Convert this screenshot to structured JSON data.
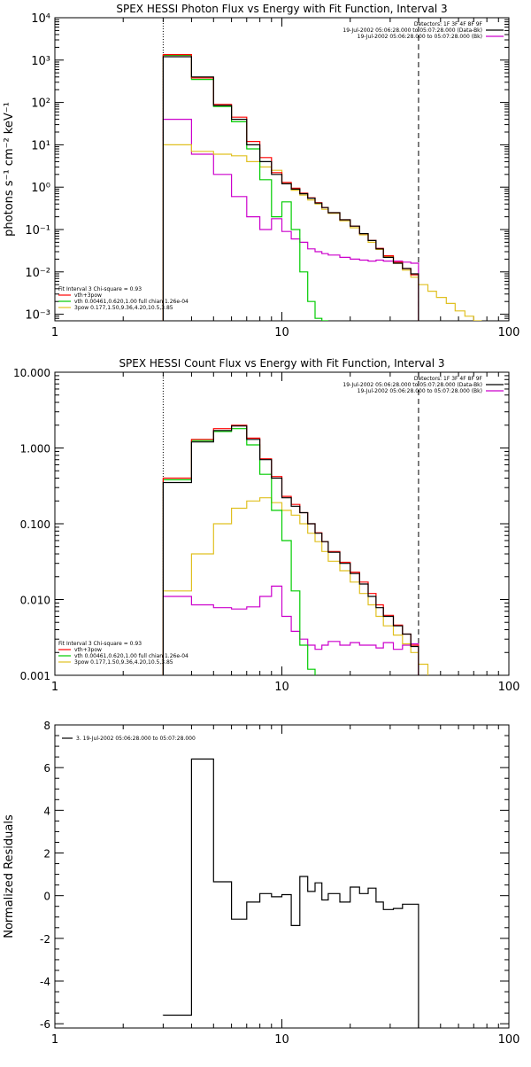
{
  "colors": {
    "data": "#000000",
    "total": "#ff0000",
    "thermal": "#00cc00",
    "powerlaw": "#e0c020",
    "background": "#cc00cc"
  },
  "chart_data": [
    {
      "type": "line",
      "title": "SPEX HESSI Photon Flux vs Energy with Fit Function, Interval 3",
      "xlabel": "",
      "ylabel": "photons s⁻¹ cm⁻² keV⁻¹",
      "xscale": "log",
      "yscale": "log",
      "xlim": [
        1,
        100
      ],
      "ylim": [
        0.0007,
        10000
      ],
      "xticks": [
        1,
        10,
        100
      ],
      "xtick_labels": [
        "1",
        "10",
        "100"
      ],
      "yticks": [
        0.001,
        0.01,
        0.1,
        1,
        10,
        100,
        1000,
        10000
      ],
      "ytick_labels": [
        "10⁻³",
        "10⁻²",
        "10⁻¹",
        "10⁰",
        "10¹",
        "10²",
        "10³",
        "10⁴"
      ],
      "vlines": [
        {
          "x": 3,
          "style": "dotted"
        },
        {
          "x": 40,
          "style": "dashed"
        }
      ],
      "legend_top": [
        "Detectors: 1F 3F 4F 8F 9F",
        "19-Jul-2002 05:06:28.000 to 05:07:28.000 (Data-Bk)",
        "19-Jul-2002 05:06:28.000 to 05:07:28.000 (Bk)"
      ],
      "legend_top_colors": [
        "none",
        "data",
        "background"
      ],
      "legend_bottom": [
        "Fit Interval  3    Chi-square = 0.93",
        "vth+3pow",
        "vth 0.00461,0.620,1.00   full chian 1.26e-04",
        "3pow 0.177,1.50,9.36,4.20,10.5,3.85"
      ],
      "legend_bottom_colors": [
        "none",
        "total",
        "thermal",
        "powerlaw"
      ],
      "edges": [
        3,
        4,
        5,
        6,
        7,
        8,
        9,
        10,
        11,
        12,
        13,
        14,
        15,
        16,
        18,
        20,
        22,
        24,
        26,
        28,
        31,
        34,
        37,
        40,
        44,
        48,
        53,
        58,
        64,
        70,
        76
      ],
      "series": [
        {
          "name": "data",
          "color": "data",
          "values": [
            1200,
            400,
            85,
            40,
            10,
            4,
            2.0,
            1.2,
            0.9,
            0.7,
            0.55,
            0.42,
            0.33,
            0.25,
            0.17,
            0.12,
            0.08,
            0.055,
            0.035,
            0.022,
            0.016,
            0.012,
            0.009,
            null,
            null,
            null,
            null,
            null,
            null,
            null
          ]
        },
        {
          "name": "total",
          "color": "total",
          "values": [
            1350,
            380,
            90,
            45,
            12,
            5,
            2.2,
            1.3,
            0.95,
            0.72,
            0.56,
            0.43,
            0.33,
            0.25,
            0.17,
            0.12,
            0.08,
            0.055,
            0.036,
            0.024,
            0.017,
            0.012,
            0.0085,
            null,
            null,
            null,
            null,
            null,
            null,
            null
          ]
        },
        {
          "name": "thermal",
          "color": "thermal",
          "values": [
            1300,
            350,
            80,
            35,
            8,
            1.5,
            0.2,
            0.45,
            0.1,
            0.01,
            0.002,
            0.0008,
            0.0003,
            null,
            null,
            null,
            null,
            null,
            null,
            null,
            null,
            null,
            null,
            null,
            null,
            null,
            null,
            null,
            null,
            null
          ]
        },
        {
          "name": "powerlaw",
          "color": "powerlaw",
          "values": [
            10,
            7,
            6,
            5.5,
            4,
            3,
            2.5,
            1.2,
            0.85,
            0.65,
            0.5,
            0.4,
            0.3,
            0.24,
            0.16,
            0.11,
            0.075,
            0.05,
            0.034,
            0.023,
            0.016,
            0.011,
            0.0075,
            0.005,
            0.0035,
            0.0025,
            0.0018,
            0.0012,
            0.0009,
            0.0007
          ]
        },
        {
          "name": "background",
          "color": "background",
          "values": [
            40,
            6,
            2.0,
            0.6,
            0.2,
            0.1,
            0.18,
            0.09,
            0.06,
            0.05,
            0.035,
            0.03,
            0.027,
            0.025,
            0.022,
            0.02,
            0.019,
            0.018,
            0.019,
            0.018,
            0.018,
            0.017,
            0.016,
            null,
            null,
            null,
            null,
            null,
            null,
            null
          ]
        }
      ]
    },
    {
      "type": "line",
      "title": "SPEX HESSI Count Flux vs Energy with Fit Function, Interval 3",
      "xlabel": "",
      "ylabel": "",
      "xscale": "log",
      "yscale": "log",
      "xlim": [
        1,
        100
      ],
      "ylim": [
        0.001,
        10
      ],
      "xticks": [
        1,
        10,
        100
      ],
      "xtick_labels": [
        "1",
        "10",
        "100"
      ],
      "yticks": [
        0.001,
        0.01,
        0.1,
        1,
        10
      ],
      "ytick_labels": [
        "0.001",
        "0.010",
        "0.100",
        "1.000",
        "10.000"
      ],
      "vlines": [
        {
          "x": 3,
          "style": "dotted"
        },
        {
          "x": 40,
          "style": "dashed"
        }
      ],
      "legend_top": [
        "Detectors: 1F 3F 4F 8F 9F",
        "19-Jul-2002 05:06:28.000 to 05:07:28.000 (Data-Bk)",
        "19-Jul-2002 05:06:28.000 to 05:07:28.000 (Bk)"
      ],
      "legend_top_colors": [
        "none",
        "data",
        "background"
      ],
      "legend_bottom": [
        "Fit Interval  3    Chi-square = 0.93",
        "vth+3pow",
        "vth 0.00461,0.620,1.00   full chian 1.26e-04",
        "3pow 0.177,1.50,9.36,4.20,10.5,3.85"
      ],
      "legend_bottom_colors": [
        "none",
        "total",
        "thermal",
        "powerlaw"
      ],
      "edges": [
        3,
        4,
        5,
        6,
        7,
        8,
        9,
        10,
        11,
        12,
        13,
        14,
        15,
        16,
        18,
        20,
        22,
        24,
        26,
        28,
        31,
        34,
        37,
        40,
        44
      ],
      "series": [
        {
          "name": "data",
          "color": "data",
          "values": [
            0.35,
            1.2,
            1.7,
            1.95,
            1.3,
            0.7,
            0.4,
            0.22,
            0.17,
            0.14,
            0.1,
            0.075,
            0.058,
            0.042,
            0.03,
            0.022,
            0.016,
            0.011,
            0.0078,
            0.006,
            0.0045,
            0.0035,
            0.0024,
            null
          ]
        },
        {
          "name": "total",
          "color": "total",
          "values": [
            0.4,
            1.3,
            1.8,
            2.0,
            1.35,
            0.72,
            0.42,
            0.23,
            0.18,
            0.14,
            0.1,
            0.076,
            0.058,
            0.043,
            0.031,
            0.023,
            0.017,
            0.012,
            0.0085,
            0.0062,
            0.0046,
            0.0035,
            0.0025,
            null
          ]
        },
        {
          "name": "thermal",
          "color": "thermal",
          "values": [
            0.38,
            1.25,
            1.65,
            1.8,
            1.1,
            0.45,
            0.15,
            0.06,
            0.013,
            0.0025,
            0.0012,
            null,
            null,
            null,
            null,
            null,
            null,
            null,
            null,
            null,
            null,
            null,
            null,
            null
          ]
        },
        {
          "name": "powerlaw",
          "color": "powerlaw",
          "values": [
            0.013,
            0.04,
            0.1,
            0.16,
            0.2,
            0.22,
            0.19,
            0.15,
            0.13,
            0.1,
            0.075,
            0.058,
            0.043,
            0.032,
            0.024,
            0.017,
            0.012,
            0.0085,
            0.006,
            0.0045,
            0.0034,
            0.0026,
            0.002,
            0.0014
          ]
        },
        {
          "name": "background",
          "color": "background",
          "values": [
            0.011,
            0.0085,
            0.0078,
            0.0075,
            0.008,
            0.011,
            0.015,
            0.006,
            0.0038,
            0.003,
            0.0025,
            0.0022,
            0.0025,
            0.0028,
            0.0025,
            0.0027,
            0.0025,
            0.0025,
            0.0023,
            0.0027,
            0.0022,
            0.0025,
            0.0026,
            null
          ]
        }
      ]
    },
    {
      "type": "line",
      "title": "",
      "xlabel": "",
      "ylabel": "Normalized Residuals",
      "xscale": "log",
      "yscale": "linear",
      "xlim": [
        1,
        100
      ],
      "ylim": [
        -6.2,
        8
      ],
      "xticks": [
        1,
        10,
        100
      ],
      "xtick_labels": [
        "1",
        "10",
        "100"
      ],
      "yticks": [
        -6,
        -4,
        -2,
        0,
        2,
        4,
        6,
        8
      ],
      "ytick_labels": [
        "-6",
        "-4",
        "-2",
        "0",
        "2",
        "4",
        "6",
        "8"
      ],
      "legend_top_left": "3. 19-Jul-2002 05:06:28.000 to 05:07:28.000",
      "edges": [
        3,
        4,
        5,
        6,
        7,
        8,
        9,
        10,
        11,
        12,
        13,
        14,
        15,
        16,
        18,
        20,
        22,
        24,
        26,
        28,
        31,
        34,
        37,
        40
      ],
      "series": [
        {
          "name": "residuals",
          "color": "data",
          "values": [
            -5.6,
            6.4,
            0.65,
            -1.1,
            -0.3,
            0.1,
            -0.05,
            0.05,
            -1.4,
            0.9,
            0.2,
            0.6,
            -0.2,
            0.1,
            -0.3,
            0.4,
            0.1,
            0.35,
            -0.3,
            -0.65,
            -0.6,
            -0.4,
            -0.4
          ]
        }
      ]
    }
  ]
}
